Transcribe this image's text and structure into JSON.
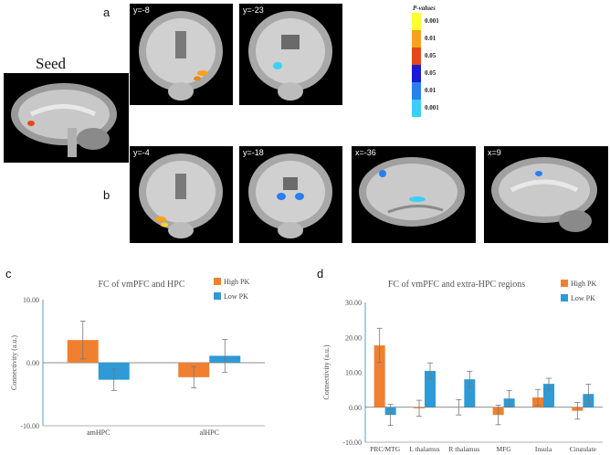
{
  "figure": {
    "panel_a_label": "a",
    "panel_b_label": "b",
    "panel_c_label": "c",
    "panel_d_label": "d",
    "seed_label": "Seed"
  },
  "panel_a": {
    "slices": [
      {
        "coord": "y=-8"
      },
      {
        "coord": "y=-23"
      }
    ]
  },
  "panel_b": {
    "slices": [
      {
        "coord": "y=-4"
      },
      {
        "coord": "y=-18"
      },
      {
        "coord": "x=-36"
      },
      {
        "coord": "x=9"
      }
    ]
  },
  "colorbar": {
    "title": "P-values",
    "ticks": [
      "0.001",
      "0.01",
      "0.05",
      "0.05",
      "0.01",
      "0.001"
    ],
    "colors": [
      "#ffff33",
      "#f7a21b",
      "#e8461a",
      "#1a1ad4",
      "#2a7ff0",
      "#3ad0f5"
    ]
  },
  "colors": {
    "high_pk": "#f08030",
    "low_pk": "#2e9ad6",
    "axis": "#5b9bd5"
  },
  "chart_data": [
    {
      "type": "bar",
      "title": "FC of vmPFC and HPC",
      "ylabel": "Connectivity (a.u.)",
      "categories": [
        "amHPC",
        "alHPC"
      ],
      "yticks": [
        "10.00",
        "0.00",
        "-10.00"
      ],
      "ylim": [
        -10,
        10
      ],
      "series": [
        {
          "name": "High PK",
          "values": [
            3.6,
            -2.3
          ],
          "errors": [
            3.0,
            1.7
          ]
        },
        {
          "name": "Low PK",
          "values": [
            -2.7,
            1.1
          ],
          "errors": [
            1.7,
            2.6
          ]
        }
      ]
    },
    {
      "type": "bar",
      "title": "FC of vmPFC and extra-HPC regions",
      "ylabel": "Connectivity (a.u.)",
      "categories": [
        "PRC/MTG",
        "L thalamus",
        "R thalamus",
        "MFG",
        "Insula",
        "Cingulate"
      ],
      "yticks": [
        "30.00",
        "20.00",
        "10.00",
        "0.00",
        "-10.00"
      ],
      "ylim": [
        -10,
        30
      ],
      "series": [
        {
          "name": "High PK",
          "values": [
            17.7,
            -0.3,
            0.0,
            -2.2,
            2.8,
            -1.0
          ],
          "errors": [
            4.9,
            2.3,
            2.2,
            2.8,
            2.3,
            2.4
          ]
        },
        {
          "name": "Low PK",
          "values": [
            -2.2,
            10.4,
            8.0,
            2.5,
            6.7,
            3.8
          ],
          "errors": [
            3.0,
            2.3,
            2.3,
            2.3,
            1.6,
            2.8
          ]
        }
      ]
    }
  ]
}
